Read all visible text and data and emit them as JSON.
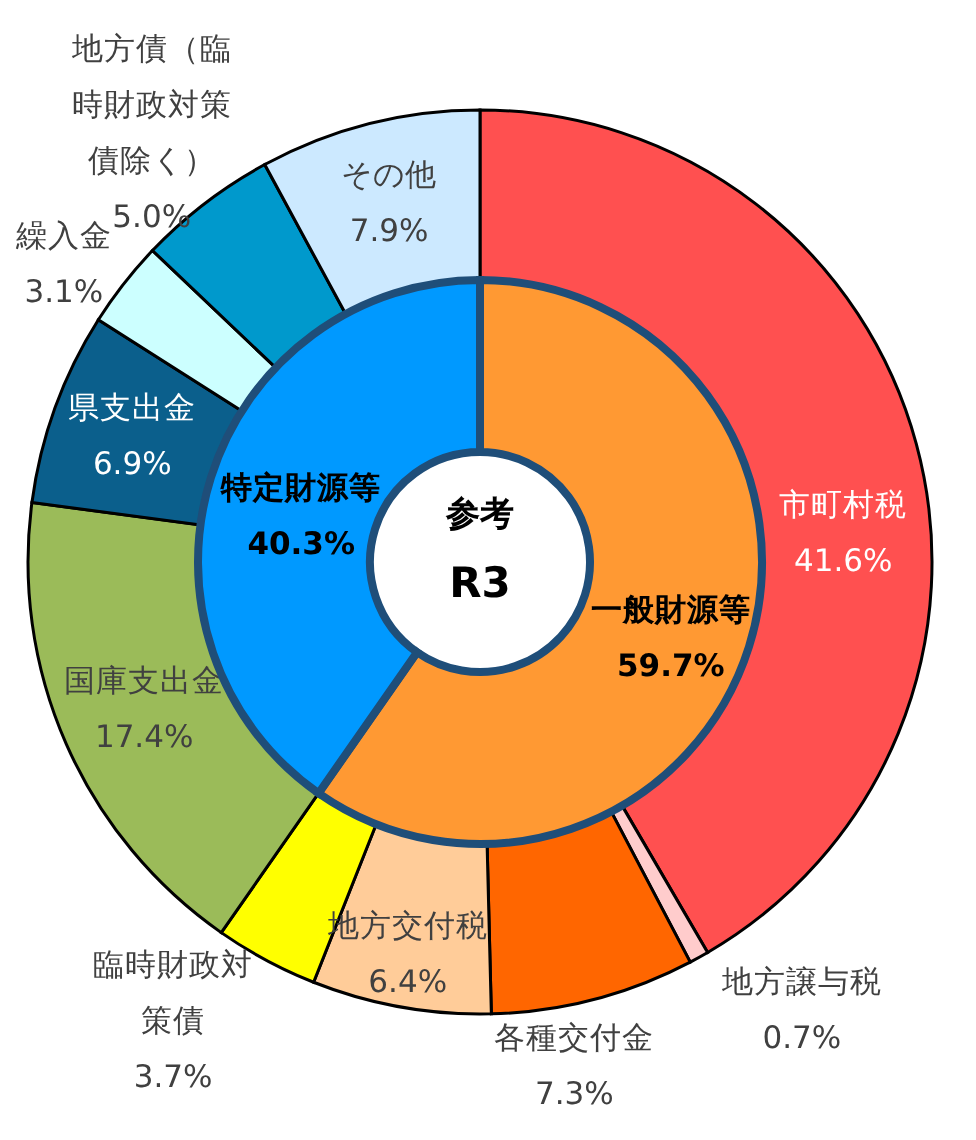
{
  "chart_data": [
    {
      "type": "donut",
      "categories": [
        "市町村税",
        "地方譲与税",
        "各種交付金",
        "地方交付税",
        "臨時財政対策債",
        "国庫支出金",
        "県支出金",
        "繰入金",
        "地方債（臨時財政対策債除く）",
        "その他"
      ],
      "values": [
        41.6,
        0.7,
        7.3,
        6.4,
        3.7,
        17.4,
        6.9,
        3.1,
        5.0,
        7.9
      ],
      "colors": [
        "#ff5050",
        "#ffcccc",
        "#ff6600",
        "#ffcc99",
        "#ffff00",
        "#9bbb59",
        "#0b5f8c",
        "#ccffff",
        "#0099cc",
        "#cce9ff"
      ],
      "value_labels": [
        "41.6%",
        "0.7%",
        "7.3%",
        "6.4%",
        "3.7%",
        "17.4%",
        "6.9%",
        "3.1%",
        "5.0%",
        "7.9%"
      ]
    },
    {
      "type": "donut",
      "categories": [
        "一般財源等",
        "特定財源等"
      ],
      "values": [
        59.7,
        40.3
      ],
      "colors": [
        "#ff9933",
        "#0099ff"
      ],
      "value_labels": [
        "59.7%",
        "40.3%"
      ],
      "annotations": [
        "参考",
        "R3"
      ]
    }
  ]
}
